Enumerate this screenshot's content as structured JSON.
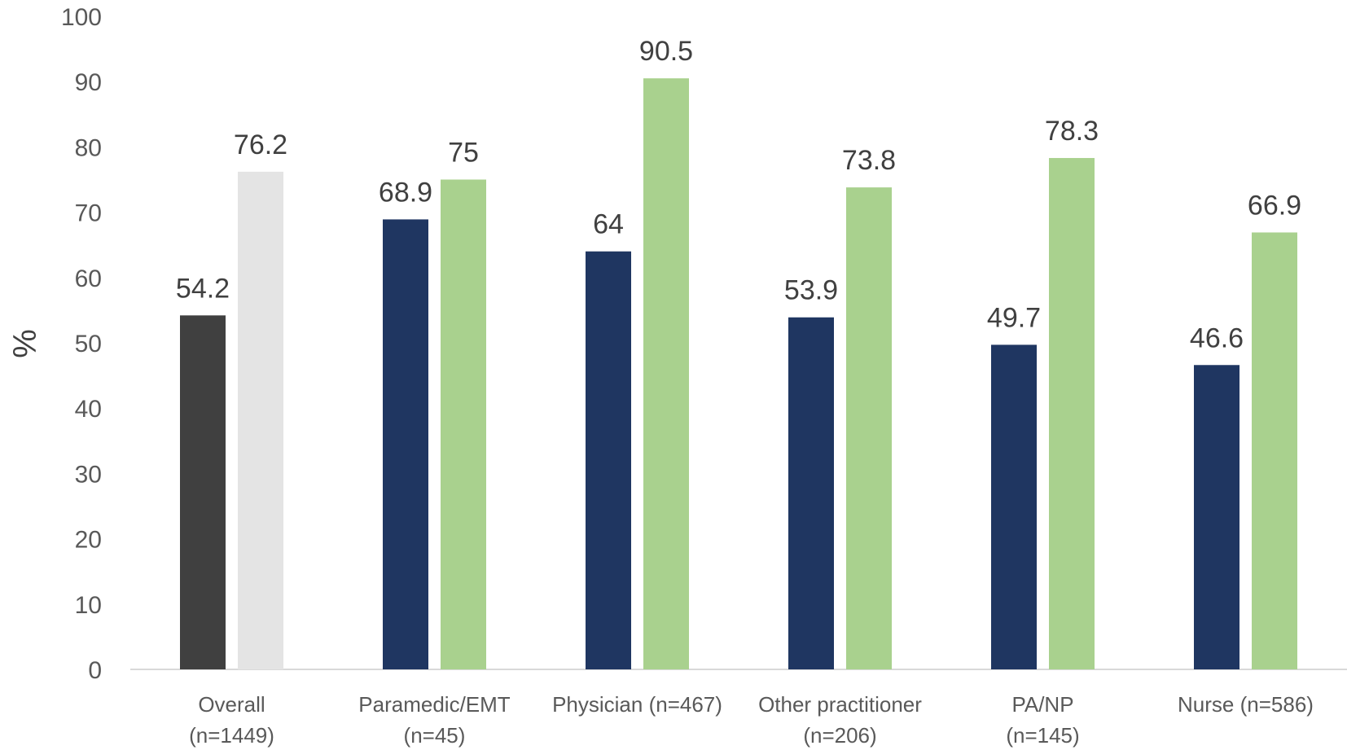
{
  "chart_data": {
    "type": "bar",
    "title": "",
    "xlabel": "",
    "ylabel": "%",
    "ylim": [
      0,
      100
    ],
    "yticks": [
      0,
      10,
      20,
      30,
      40,
      50,
      60,
      70,
      80,
      90,
      100
    ],
    "grid": false,
    "categories": [
      [
        "Overall",
        "(n=1449)"
      ],
      [
        "Paramedic/EMT",
        "(n=45)"
      ],
      [
        "Physician (n=467)"
      ],
      [
        "Other practitioner",
        "(n=206)"
      ],
      [
        "PA/NP",
        "(n=145)"
      ],
      [
        "Nurse (n=586)"
      ]
    ],
    "series": [
      {
        "values": [
          54.2,
          68.9,
          64,
          53.9,
          49.7,
          46.6
        ],
        "labels": [
          "54.2",
          "68.9",
          "64",
          "53.9",
          "49.7",
          "46.6"
        ],
        "colors": [
          "#404040",
          "#1f3661",
          "#1f3661",
          "#1f3661",
          "#1f3661",
          "#1f3661"
        ]
      },
      {
        "values": [
          76.2,
          75,
          90.5,
          73.8,
          78.3,
          66.9
        ],
        "labels": [
          "76.2",
          "75",
          "90.5",
          "73.8",
          "78.3",
          "66.9"
        ],
        "colors": [
          "#e4e4e4",
          "#a9d18e",
          "#a9d18e",
          "#a9d18e",
          "#a9d18e",
          "#a9d18e"
        ]
      }
    ],
    "colors": {
      "axis": "#d9d9d9"
    }
  }
}
